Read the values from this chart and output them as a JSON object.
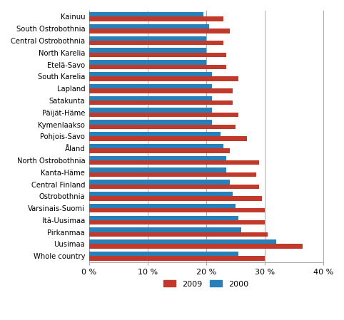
{
  "regions": [
    "Kainuu",
    "South Ostrobothnia",
    "Central Ostrobothnia",
    "North Karelia",
    "Etelä-Savo",
    "South Karelia",
    "Lapland",
    "Satakunta",
    "Päijät-Häme",
    "Kymenlaakso",
    "Pohjois-Savo",
    "Åland",
    "North Ostrobothnia",
    "Kanta-Häme",
    "Central Finland",
    "Ostrobothnia",
    "Varsinais-Suomi",
    "Itä-Uusimaa",
    "Pirkanmaa",
    "Uusimaa",
    "Whole country"
  ],
  "values_2009": [
    23,
    24,
    23,
    23.5,
    23.5,
    25.5,
    24.5,
    24.5,
    25.5,
    25,
    27,
    24,
    29,
    28.5,
    29,
    29.5,
    30,
    30,
    30.5,
    36.5,
    30
  ],
  "values_2000": [
    19.5,
    20.5,
    20,
    20,
    20,
    21,
    21,
    21,
    21,
    21,
    22.5,
    23,
    23.5,
    23.5,
    24,
    24.5,
    25,
    25.5,
    26,
    32,
    25.5
  ],
  "color_2009": "#c0392b",
  "color_2000": "#2980b9",
  "xlim": [
    0,
    40
  ],
  "xticks": [
    0,
    10,
    20,
    30,
    40
  ],
  "legend_labels": [
    "2009",
    "2000"
  ],
  "bar_height": 0.38,
  "background_color": "#ffffff",
  "grid_color": "#aaaaaa"
}
